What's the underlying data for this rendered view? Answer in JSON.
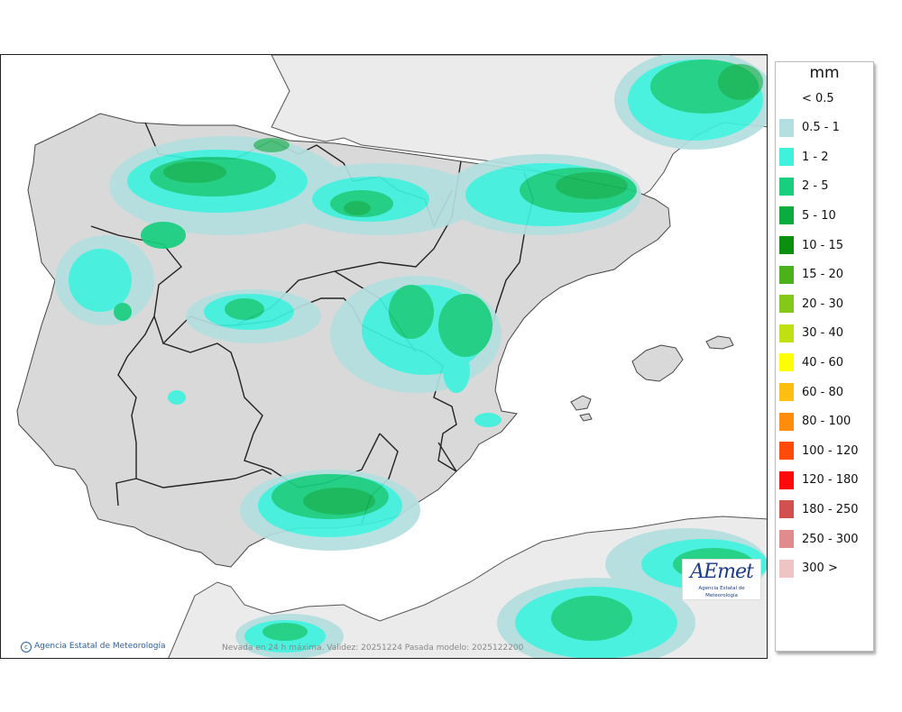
{
  "legend": {
    "unit": "mm",
    "items": [
      {
        "label": "< 0.5",
        "color": ""
      },
      {
        "label": "0.5 - 1",
        "color": "#b4dfe0"
      },
      {
        "label": "1 - 2",
        "color": "#3ef2de"
      },
      {
        "label": "2 - 5",
        "color": "#17cf7f"
      },
      {
        "label": "5 - 10",
        "color": "#0aab3f"
      },
      {
        "label": "10 - 15",
        "color": "#0a8f0f"
      },
      {
        "label": "15 - 20",
        "color": "#4bb319"
      },
      {
        "label": "20 - 30",
        "color": "#85c918"
      },
      {
        "label": "30 - 40",
        "color": "#c0e012"
      },
      {
        "label": "40 - 60",
        "color": "#ffff00"
      },
      {
        "label": "60 - 80",
        "color": "#ffbf12"
      },
      {
        "label": "80 - 100",
        "color": "#ff8c0a"
      },
      {
        "label": "100 - 120",
        "color": "#ff4a0a"
      },
      {
        "label": "120 - 180",
        "color": "#ff0a0a"
      },
      {
        "label": "180 - 250",
        "color": "#d25050"
      },
      {
        "label": "250 - 300",
        "color": "#e08c8c"
      },
      {
        "label": "300 >",
        "color": "#f0c4c4"
      }
    ]
  },
  "map": {
    "credit": "Agencia Estatal de Meteorología",
    "footer": "Nevada en 24 h máxima. Validez: 20251224 Pasada modelo: 2025122200",
    "logo_text": "AEmet",
    "logo_subtitle": "Agencia Estatal de Meteorología"
  }
}
